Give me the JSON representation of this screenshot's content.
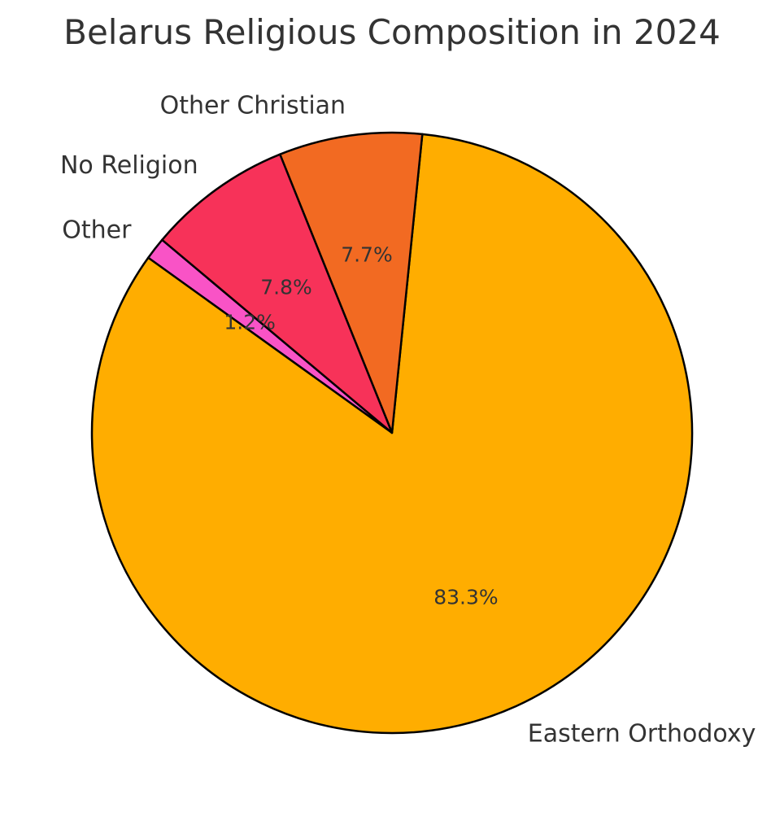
{
  "chart_data": {
    "type": "pie",
    "title": "Belarus Religious Composition in 2024",
    "start_angle_deg": 140,
    "direction": "counterclockwise",
    "edge_color": "#000000",
    "slices": [
      {
        "label": "Other",
        "value": 1.2,
        "pct_label": "1.2%",
        "color": "#F953C6"
      },
      {
        "label": "Eastern Orthodoxy",
        "value": 83.3,
        "pct_label": "83.3%",
        "color": "#FFAD00"
      },
      {
        "label": "Other Christian",
        "value": 7.7,
        "pct_label": "7.7%",
        "color": "#F26A22"
      },
      {
        "label": "No Religion",
        "value": 7.8,
        "pct_label": "7.8%",
        "color": "#F73259"
      }
    ]
  }
}
